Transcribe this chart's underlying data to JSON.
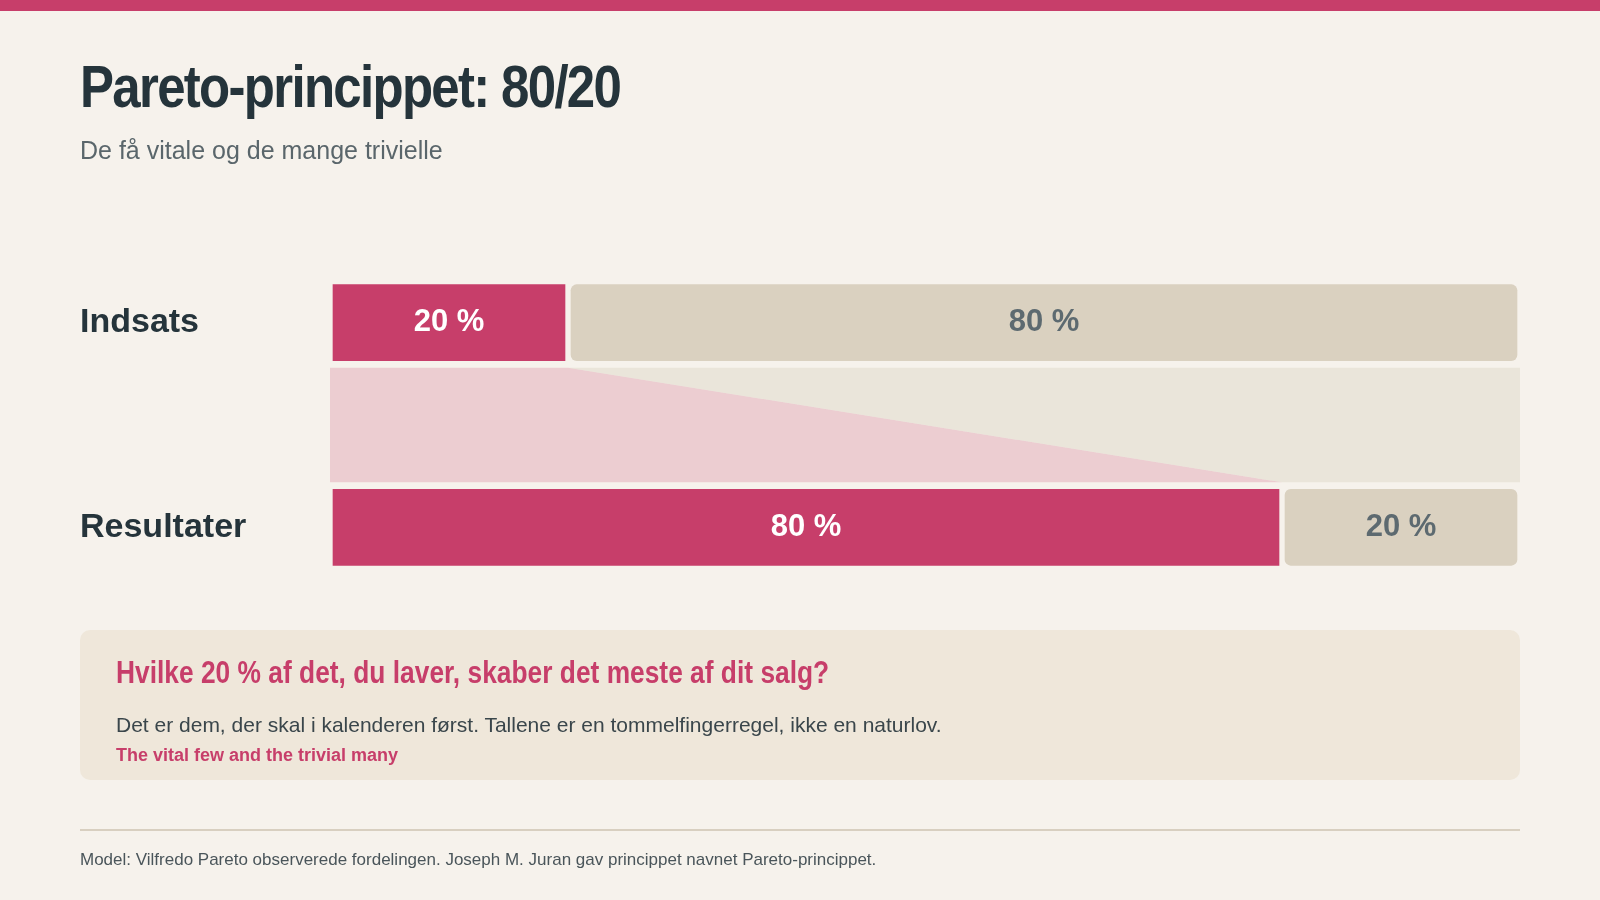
{
  "chart_data": {
    "type": "bar",
    "orientation": "horizontal",
    "stacked": true,
    "title": "Pareto-princippet: 80/20",
    "subtitle": "De få vitale og de mange trivielle",
    "categories": [
      "Indsats",
      "Resultater"
    ],
    "series": [
      {
        "color": "#c73e6a",
        "values": [
          20,
          80
        ],
        "value_labels": [
          "20 %",
          "80 %"
        ]
      },
      {
        "color": "#dad1c0",
        "values": [
          80,
          20
        ],
        "value_labels": [
          "80 %",
          "20 %"
        ]
      }
    ],
    "xlim": [
      0,
      100
    ],
    "legend": false,
    "tick_labels": "y",
    "annotations": [
      "Hvilke 20 % af det, du laver, skaber det meste af dit salg?",
      "Det er dem, der skal i kalenderen først. Tallene er en tommelfingerregel, ikke en naturlov.",
      "The vital few and the trivial many",
      "Model: Vilfredo Pareto observerede fordelingen. Joseph M. Juran gav princippet navnet Pareto-princippet."
    ]
  }
}
